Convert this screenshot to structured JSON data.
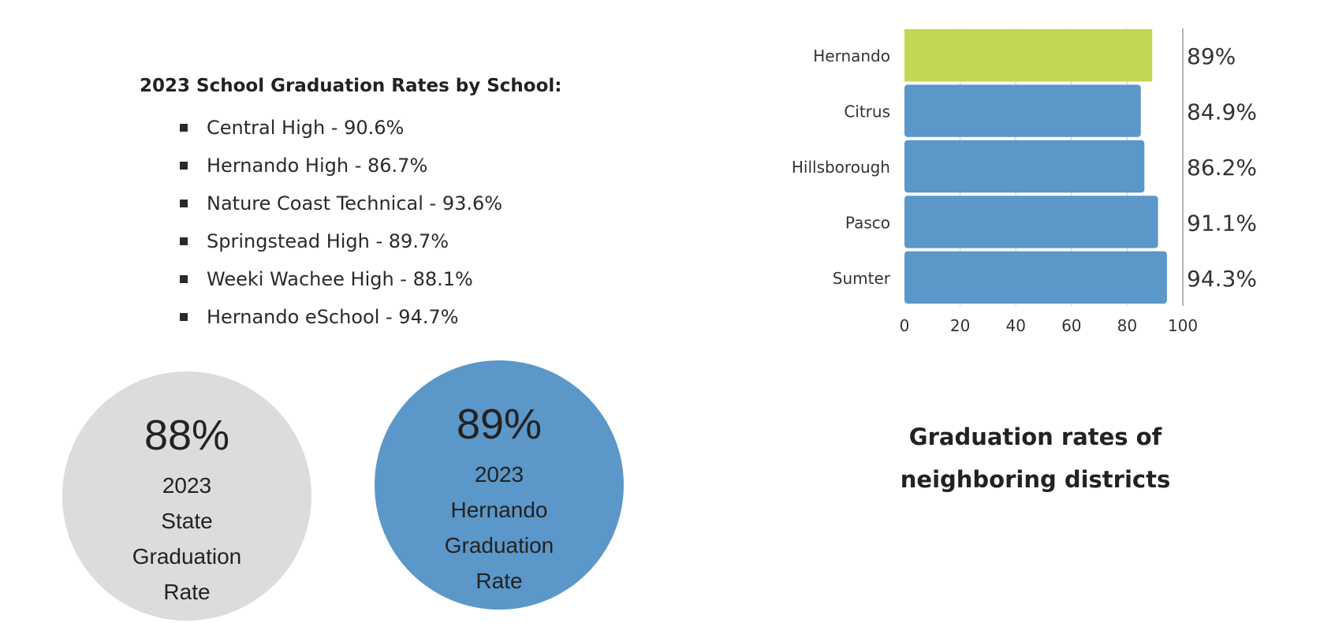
{
  "left": {
    "title": "2023 School Graduation Rates by School:",
    "schools": [
      "Central High - 90.6%",
      "Hernando High - 86.7%",
      "Nature Coast Technical - 93.6%",
      "Springstead High - 89.7%",
      "Weeki Wachee High - 88.1%",
      "Hernando eSchool - 94.7%"
    ]
  },
  "circles": [
    {
      "value": "88%",
      "lines": [
        "2023",
        "State",
        "Graduation",
        "Rate"
      ],
      "color": "#dcdcdc"
    },
    {
      "value": "89%",
      "lines": [
        "2023",
        "Hernando",
        "Graduation",
        "Rate"
      ],
      "color": "#5b97c8"
    }
  ],
  "chart_data": {
    "type": "bar",
    "orientation": "horizontal",
    "categories": [
      "Hernando",
      "Citrus",
      "Hillsborough",
      "Pasco",
      "Sumter"
    ],
    "values": [
      89,
      84.9,
      86.2,
      91.1,
      94.3
    ],
    "data_labels": [
      "89%",
      "84.9%",
      "86.2%",
      "91.1%",
      "94.3%"
    ],
    "colors": [
      "#c3d655",
      "#5b97c8",
      "#5b97c8",
      "#5b97c8",
      "#5b97c8"
    ],
    "xlim": [
      0,
      100
    ],
    "xticks": [
      "0",
      "20",
      "40",
      "60",
      "80",
      "100"
    ],
    "grid": true,
    "title": "Graduation rates of neighboring districts",
    "title_lines": [
      "Graduation rates of",
      "neighboring districts"
    ]
  }
}
